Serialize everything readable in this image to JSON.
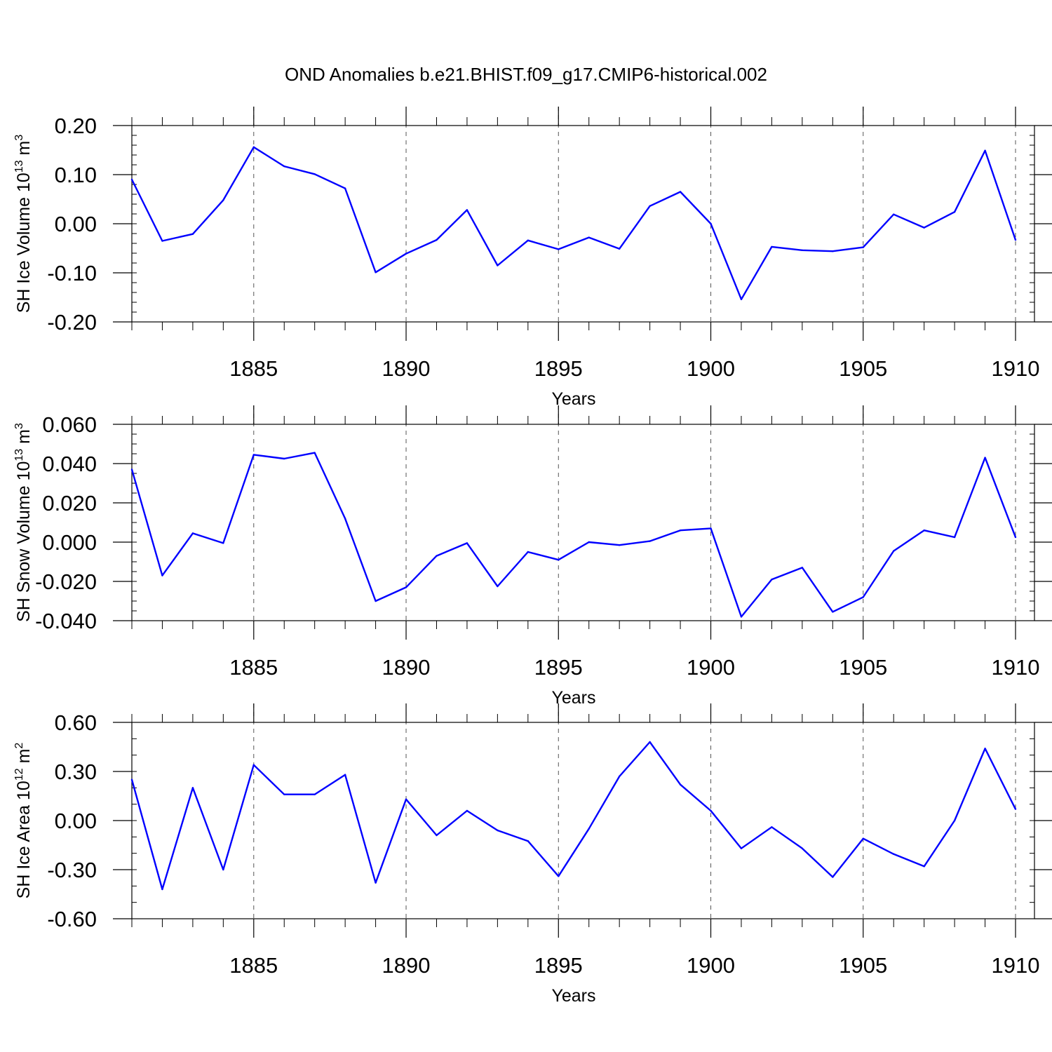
{
  "title": "OND Anomalies b.e21.BHIST.f09_g17.CMIP6-historical.002",
  "chart_data": [
    {
      "type": "line",
      "ylabel": "SH Ice Volume 10",
      "ylabel_sup": "13",
      "ylabel_unit": " m",
      "ylabel_unit_sup": "3",
      "xlabel": "Years",
      "xlim": [
        1881,
        1910
      ],
      "ylim": [
        -0.2,
        0.2
      ],
      "y_ticks": [
        "0.20",
        "0.10",
        "0.00",
        "-0.10",
        "-0.20"
      ],
      "y_tick_values": [
        0.2,
        0.1,
        0.0,
        -0.1,
        -0.2
      ],
      "y_minor_step": 0.02,
      "x_ticks": [
        "1885",
        "1890",
        "1895",
        "1900",
        "1905",
        "1910"
      ],
      "x_tick_values": [
        1885,
        1890,
        1895,
        1900,
        1905,
        1910
      ],
      "grid": "dashed vertical at major x ticks",
      "color": "#0000ff",
      "x": [
        1881,
        1882,
        1883,
        1884,
        1885,
        1886,
        1887,
        1888,
        1889,
        1890,
        1891,
        1892,
        1893,
        1894,
        1895,
        1896,
        1897,
        1898,
        1899,
        1900,
        1901,
        1902,
        1903,
        1904,
        1905,
        1906,
        1907,
        1908,
        1909,
        1910
      ],
      "values": [
        0.09,
        -0.035,
        -0.021,
        0.048,
        0.156,
        0.117,
        0.101,
        0.072,
        -0.099,
        -0.061,
        -0.033,
        0.028,
        -0.085,
        -0.034,
        -0.052,
        -0.028,
        -0.051,
        0.036,
        0.065,
        0.0,
        -0.154,
        -0.047,
        -0.054,
        -0.056,
        -0.048,
        0.019,
        -0.008,
        0.024,
        0.149,
        -0.033
      ]
    },
    {
      "type": "line",
      "ylabel": "SH Snow Volume 10",
      "ylabel_sup": "13",
      "ylabel_unit": " m",
      "ylabel_unit_sup": "3",
      "xlabel": "Years",
      "xlim": [
        1881,
        1910
      ],
      "ylim": [
        -0.04,
        0.06
      ],
      "y_ticks": [
        "0.060",
        "0.040",
        "0.020",
        "0.000",
        "-0.020",
        "-0.040"
      ],
      "y_tick_values": [
        0.06,
        0.04,
        0.02,
        0.0,
        -0.02,
        -0.04
      ],
      "y_minor_step": 0.005,
      "x_ticks": [
        "1885",
        "1890",
        "1895",
        "1900",
        "1905",
        "1910"
      ],
      "x_tick_values": [
        1885,
        1890,
        1895,
        1900,
        1905,
        1910
      ],
      "grid": "dashed vertical at major x ticks",
      "color": "#0000ff",
      "x": [
        1881,
        1882,
        1883,
        1884,
        1885,
        1886,
        1887,
        1888,
        1889,
        1890,
        1891,
        1892,
        1893,
        1894,
        1895,
        1896,
        1897,
        1898,
        1899,
        1900,
        1901,
        1902,
        1903,
        1904,
        1905,
        1906,
        1907,
        1908,
        1909,
        1910
      ],
      "values": [
        0.037,
        -0.017,
        0.0045,
        -0.0005,
        0.0445,
        0.0425,
        0.0455,
        0.012,
        -0.03,
        -0.023,
        -0.007,
        -0.0005,
        -0.0225,
        -0.005,
        -0.009,
        0.0,
        -0.0015,
        0.0005,
        0.006,
        0.007,
        -0.038,
        -0.019,
        -0.013,
        -0.0355,
        -0.028,
        -0.0045,
        0.006,
        0.0025,
        0.043,
        0.0025
      ]
    },
    {
      "type": "line",
      "ylabel": "SH Ice Area 10",
      "ylabel_sup": "12",
      "ylabel_unit": " m",
      "ylabel_unit_sup": "2",
      "xlabel": "Years",
      "xlim": [
        1881,
        1910
      ],
      "ylim": [
        -0.6,
        0.6
      ],
      "y_ticks": [
        "0.60",
        "0.30",
        "0.00",
        "-0.30",
        "-0.60"
      ],
      "y_tick_values": [
        0.6,
        0.3,
        0.0,
        -0.3,
        -0.6
      ],
      "y_minor_step": 0.1,
      "x_ticks": [
        "1885",
        "1890",
        "1895",
        "1900",
        "1905",
        "1910"
      ],
      "x_tick_values": [
        1885,
        1890,
        1895,
        1900,
        1905,
        1910
      ],
      "grid": "dashed vertical at major x ticks",
      "color": "#0000ff",
      "x": [
        1881,
        1882,
        1883,
        1884,
        1885,
        1886,
        1887,
        1888,
        1889,
        1890,
        1891,
        1892,
        1893,
        1894,
        1895,
        1896,
        1897,
        1898,
        1899,
        1900,
        1901,
        1902,
        1903,
        1904,
        1905,
        1906,
        1907,
        1908,
        1909,
        1910
      ],
      "values": [
        0.25,
        -0.42,
        0.2,
        -0.3,
        0.34,
        0.16,
        0.16,
        0.28,
        -0.38,
        0.13,
        -0.09,
        0.06,
        -0.06,
        -0.125,
        -0.34,
        -0.05,
        0.27,
        0.48,
        0.22,
        0.06,
        -0.17,
        -0.04,
        -0.17,
        -0.345,
        -0.11,
        -0.205,
        -0.28,
        0.0,
        0.44,
        0.07
      ]
    }
  ]
}
